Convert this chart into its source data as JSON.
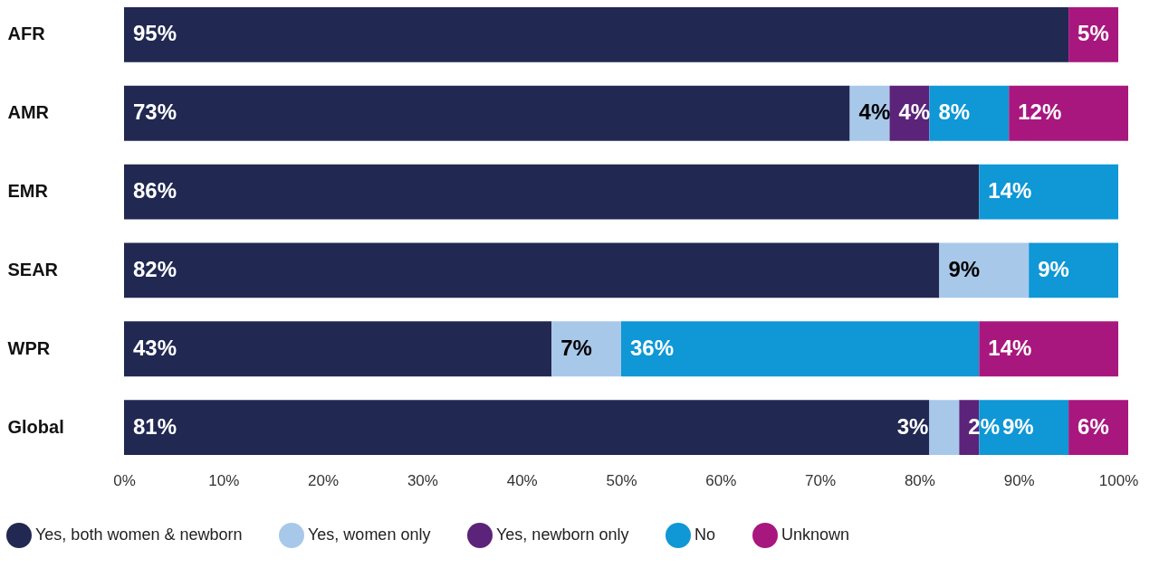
{
  "chart_data": {
    "type": "bar",
    "orientation": "horizontal",
    "stacked": true,
    "legend": "bottom",
    "categories": [
      "AFR",
      "AMR",
      "EMR",
      "SEAR",
      "WPR",
      "Global"
    ],
    "xlim": [
      0,
      101
    ],
    "xticks": [
      {
        "value": 0,
        "label": "0%"
      },
      {
        "value": 10,
        "label": "10%"
      },
      {
        "value": 20,
        "label": "20%"
      },
      {
        "value": 30,
        "label": "30%"
      },
      {
        "value": 40,
        "label": "40%"
      },
      {
        "value": 50,
        "label": "50%"
      },
      {
        "value": 60,
        "label": "60%"
      },
      {
        "value": 70,
        "label": "70%"
      },
      {
        "value": 80,
        "label": "80%"
      },
      {
        "value": 90,
        "label": "90%"
      },
      {
        "value": 100,
        "label": "100%"
      }
    ],
    "series": [
      {
        "name": "Yes, both women & newborn",
        "color": "#212852",
        "values": [
          95,
          73,
          86,
          82,
          43,
          81
        ],
        "value_labels": [
          "95%",
          "73%",
          "86%",
          "82%",
          "43%",
          "81%"
        ]
      },
      {
        "name": "Yes, women only",
        "color": "#a8c8ea",
        "values": [
          null,
          4,
          null,
          9,
          7,
          3
        ],
        "value_labels": [
          null,
          "4%",
          null,
          "9%",
          "7%",
          "3%"
        ]
      },
      {
        "name": "Yes, newborn only",
        "color": "#5b2379",
        "values": [
          null,
          4,
          null,
          null,
          null,
          2
        ],
        "value_labels": [
          null,
          "4%",
          null,
          null,
          null,
          "2%"
        ]
      },
      {
        "name": "No",
        "color": "#0f97d6",
        "values": [
          null,
          8,
          14,
          9,
          36,
          9
        ],
        "value_labels": [
          null,
          "8%",
          "14%",
          "9%",
          "36%",
          "9%"
        ]
      },
      {
        "name": "Unknown",
        "color": "#a8177e",
        "values": [
          5,
          12,
          null,
          null,
          14,
          6
        ],
        "value_labels": [
          "5%",
          "12%",
          null,
          null,
          "14%",
          "6%"
        ]
      }
    ]
  }
}
